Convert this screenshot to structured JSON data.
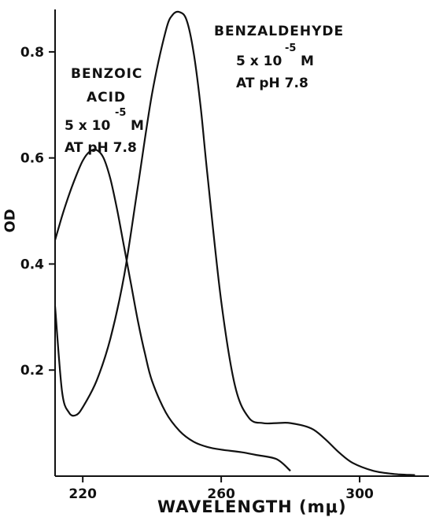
{
  "chart_data": {
    "type": "line",
    "xlabel": "WAVELENGTH (mμ)",
    "ylabel": "OD",
    "xlim": [
      212,
      320
    ],
    "ylim": [
      0.0,
      0.88
    ],
    "x_ticks": [
      220,
      260,
      300
    ],
    "y_ticks": [
      0.2,
      0.4,
      0.6,
      0.8
    ],
    "x_tick_labels": [
      "220",
      "260",
      "300"
    ],
    "y_tick_labels": [
      "0.2",
      "0.4",
      "0.6",
      "0.8"
    ],
    "grid": false,
    "series": [
      {
        "name": "BENZOIC ACID",
        "x": [
          212,
          214,
          216,
          218,
          220,
          222,
          224,
          226,
          228,
          230,
          232,
          234,
          236,
          238,
          240,
          244,
          248,
          252,
          256,
          260,
          266,
          270,
          276,
          280
        ],
        "y": [
          0.445,
          0.49,
          0.53,
          0.565,
          0.595,
          0.612,
          0.615,
          0.6,
          0.56,
          0.5,
          0.43,
          0.36,
          0.29,
          0.23,
          0.18,
          0.12,
          0.085,
          0.065,
          0.055,
          0.05,
          0.045,
          0.04,
          0.032,
          0.01
        ]
      },
      {
        "name": "BENZALDEHYDE",
        "x": [
          212,
          214,
          216,
          218,
          220,
          224,
          228,
          232,
          236,
          240,
          244,
          246,
          248,
          250,
          252,
          254,
          256,
          260,
          264,
          268,
          272,
          276,
          280,
          286,
          290,
          294,
          298,
          304,
          310,
          316
        ],
        "y": [
          0.32,
          0.16,
          0.12,
          0.115,
          0.13,
          0.18,
          0.26,
          0.38,
          0.55,
          0.72,
          0.84,
          0.87,
          0.875,
          0.86,
          0.8,
          0.7,
          0.57,
          0.33,
          0.17,
          0.11,
          0.1,
          0.1,
          0.1,
          0.09,
          0.07,
          0.045,
          0.025,
          0.01,
          0.004,
          0.002
        ]
      }
    ],
    "annotations": {
      "benzoic": {
        "line1": "BENZOIC",
        "line2": "ACID",
        "conc_base": "5 x 10",
        "conc_exp": "-5",
        "conc_unit": "M",
        "ph": "AT  pH  7.8"
      },
      "benzaldehyde": {
        "line1": "BENZALDEHYDE",
        "conc_base": "5 x 10",
        "conc_exp": "-5",
        "conc_unit": "M",
        "ph": "AT  pH  7.8"
      }
    }
  }
}
